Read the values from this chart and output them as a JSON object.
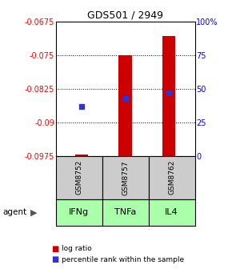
{
  "title": "GDS501 / 2949",
  "samples": [
    "GSM8752",
    "GSM8757",
    "GSM8762"
  ],
  "agents": [
    "IFNg",
    "TNFa",
    "IL4"
  ],
  "log_ratio_values": [
    -0.0972,
    -0.075,
    -0.0708
  ],
  "log_ratio_base": -0.0975,
  "percentile_values": [
    37,
    43,
    47
  ],
  "ylim_left": [
    -0.0975,
    -0.0675
  ],
  "ylim_right": [
    0,
    100
  ],
  "left_ticks": [
    -0.0975,
    -0.09,
    -0.0825,
    -0.075,
    -0.0675
  ],
  "right_ticks": [
    0,
    25,
    50,
    75,
    100
  ],
  "right_tick_labels": [
    "0",
    "25",
    "50",
    "75",
    "100%"
  ],
  "bar_color": "#cc0000",
  "dot_color": "#3333cc",
  "sample_box_color": "#cccccc",
  "agent_box_color": "#aaffaa",
  "grid_color": "#000000",
  "bar_width": 0.3
}
